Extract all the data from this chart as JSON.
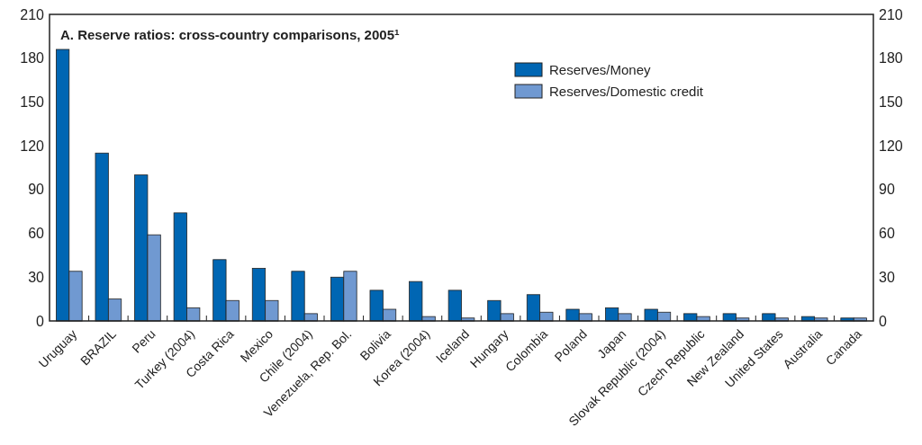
{
  "chart_data": {
    "type": "bar",
    "title": "A.   Reserve ratios: cross-country comparisons, 2005$^{1}$",
    "categories": [
      "Uruguay",
      "BRAZIL",
      "Peru",
      "Turkey (2004)",
      "Costa Rica",
      "Mexico",
      "Chile (2004)",
      "Venezuela, Rep. Bol.",
      "Bolivia",
      "Korea (2004)",
      "Iceland",
      "Hungary",
      "Colombia",
      "Poland",
      "Japan",
      "Slovak Republic (2004)",
      "Czech Republic",
      "New Zealand",
      "United States",
      "Australia",
      "Canada"
    ],
    "series": [
      {
        "name": "Reserves/Money",
        "color": "#0066b3",
        "values": [
          186,
          115,
          100,
          74,
          42,
          36,
          34,
          30,
          21,
          27,
          21,
          14,
          18,
          8,
          9,
          8,
          5,
          5,
          5,
          3,
          2
        ]
      },
      {
        "name": "Reserves/Domestic credit",
        "color": "#7099d1",
        "values": [
          34,
          15,
          59,
          9,
          14,
          14,
          5,
          34,
          8,
          3,
          2,
          5,
          6,
          5,
          5,
          6,
          3,
          2,
          2,
          2,
          2
        ]
      }
    ],
    "ylim": [
      0,
      210
    ],
    "yticks": [
      0,
      30,
      60,
      90,
      120,
      150,
      180,
      210
    ],
    "y2lim": [
      0,
      210
    ],
    "y2ticks": [
      0,
      30,
      60,
      90,
      120,
      150,
      180,
      210
    ],
    "legend": "top",
    "grid": false
  }
}
